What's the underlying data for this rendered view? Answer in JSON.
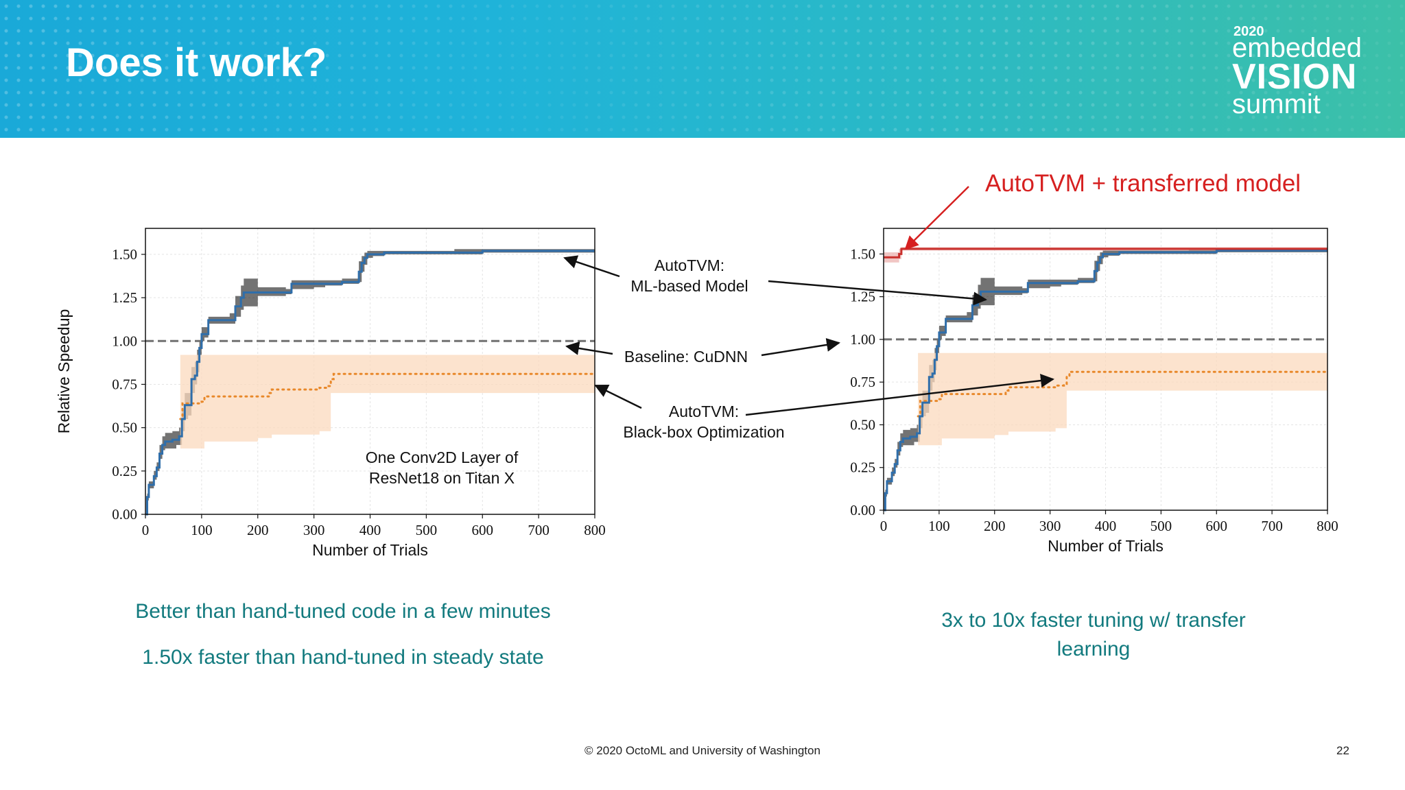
{
  "slide": {
    "title": "Does it work?",
    "logo": {
      "year": "2020",
      "line1": "embedded",
      "line2": "VISION",
      "line3": "summit"
    },
    "callouts": {
      "ml_model": [
        "AutoTVM:",
        "ML-based Model"
      ],
      "baseline": "Baseline: CuDNN",
      "blackbox": [
        "AutoTVM:",
        "Black-box Optimization"
      ],
      "transferred": "AutoTVM + transferred model"
    },
    "captions": {
      "left_1": "Better than hand-tuned code in a few minutes",
      "left_2": "1.50x faster than hand-tuned in steady state",
      "right_1": "3x to 10x faster tuning w/ transfer",
      "right_2": "learning"
    },
    "footer": "© 2020 OctoML and University of Washington",
    "page_number": "22"
  },
  "colors": {
    "ml_model": "#2f6eaa",
    "ml_band": "#8fa9c4",
    "blackbox": "#e8882a",
    "blackbox_band": "#fbd9bd",
    "baseline": "#707070",
    "transferred": "#c9302c",
    "transferred_band": "#ecb3b0",
    "arrow": "#111111",
    "red_arrow": "#d62020"
  },
  "chart_data": [
    {
      "type": "line",
      "xlabel": "Number of Trials",
      "ylabel": "Relative Speedup",
      "annotation": [
        "One Conv2D Layer of",
        "ResNet18 on Titan X"
      ],
      "xlim": [
        0,
        800
      ],
      "ylim": [
        0,
        1.65
      ],
      "xticks": [
        0,
        100,
        200,
        300,
        400,
        500,
        600,
        700,
        800
      ],
      "yticks": [
        0.0,
        0.25,
        0.5,
        0.75,
        1.0,
        1.25,
        1.5
      ],
      "ytick_labels": [
        "0.00",
        "0.25",
        "0.50",
        "0.75",
        "1.00",
        "1.25",
        "1.50"
      ],
      "grid": true,
      "series": [
        {
          "key": "ml_model",
          "style": "solid",
          "x": [
            0,
            3,
            6,
            15,
            20,
            25,
            30,
            35,
            40,
            48,
            55,
            60,
            65,
            70,
            76,
            82,
            88,
            92,
            96,
            100,
            105,
            112,
            120,
            150,
            160,
            170,
            175,
            200,
            250,
            260,
            300,
            320,
            350,
            380,
            385,
            390,
            395,
            405,
            425,
            450,
            550,
            600,
            800
          ],
          "y": [
            0,
            0.1,
            0.17,
            0.22,
            0.27,
            0.35,
            0.4,
            0.42,
            0.42,
            0.43,
            0.43,
            0.45,
            0.55,
            0.63,
            0.63,
            0.78,
            0.8,
            0.88,
            0.96,
            1.04,
            1.04,
            1.12,
            1.12,
            1.12,
            1.2,
            1.25,
            1.28,
            1.28,
            1.28,
            1.33,
            1.33,
            1.33,
            1.34,
            1.4,
            1.45,
            1.48,
            1.5,
            1.5,
            1.51,
            1.51,
            1.51,
            1.52,
            1.52
          ],
          "band_x": [
            0,
            3,
            6,
            15,
            20,
            25,
            30,
            35,
            40,
            48,
            55,
            60,
            65,
            70,
            76,
            82,
            88,
            92,
            96,
            100,
            105,
            112,
            120,
            150,
            160,
            170,
            175,
            200,
            250,
            260,
            300,
            320,
            350,
            380,
            385,
            390,
            395,
            405,
            425,
            450,
            550,
            600,
            800
          ],
          "band_low": [
            0,
            0.08,
            0.15,
            0.2,
            0.25,
            0.32,
            0.37,
            0.38,
            0.38,
            0.38,
            0.4,
            0.4,
            0.48,
            0.55,
            0.57,
            0.7,
            0.75,
            0.82,
            0.92,
            1.0,
            1.02,
            1.1,
            1.1,
            1.1,
            1.14,
            1.18,
            1.2,
            1.26,
            1.27,
            1.3,
            1.31,
            1.32,
            1.33,
            1.34,
            1.4,
            1.44,
            1.48,
            1.49,
            1.5,
            1.5,
            1.5,
            1.51,
            1.51
          ],
          "band_high": [
            0,
            0.12,
            0.19,
            0.25,
            0.3,
            0.4,
            0.45,
            0.47,
            0.47,
            0.48,
            0.48,
            0.5,
            0.6,
            0.7,
            0.7,
            0.85,
            0.88,
            0.95,
            1.0,
            1.08,
            1.08,
            1.14,
            1.14,
            1.16,
            1.26,
            1.32,
            1.36,
            1.31,
            1.3,
            1.35,
            1.35,
            1.35,
            1.36,
            1.46,
            1.49,
            1.51,
            1.52,
            1.52,
            1.52,
            1.52,
            1.53,
            1.53,
            1.53
          ]
        },
        {
          "key": "blackbox",
          "style": "dotted",
          "x": [
            62,
            66,
            80,
            100,
            105,
            110,
            200,
            220,
            225,
            250,
            275,
            310,
            325,
            330,
            335,
            800
          ],
          "y": [
            0.55,
            0.64,
            0.64,
            0.65,
            0.68,
            0.68,
            0.68,
            0.7,
            0.72,
            0.72,
            0.72,
            0.73,
            0.74,
            0.78,
            0.81,
            0.81
          ],
          "band_x": [
            62,
            66,
            80,
            100,
            105,
            110,
            200,
            220,
            225,
            250,
            275,
            310,
            325,
            330,
            335,
            800
          ],
          "band_low": [
            0.38,
            0.38,
            0.38,
            0.38,
            0.42,
            0.42,
            0.44,
            0.44,
            0.46,
            0.46,
            0.46,
            0.48,
            0.48,
            0.7,
            0.7,
            0.7
          ],
          "band_high": [
            0.92,
            0.92,
            0.92,
            0.92,
            0.92,
            0.92,
            0.92,
            0.92,
            0.92,
            0.92,
            0.92,
            0.92,
            0.92,
            0.92,
            0.92,
            0.92
          ]
        },
        {
          "key": "baseline",
          "style": "dashed",
          "x": [
            0,
            800
          ],
          "y": [
            1.0,
            1.0
          ]
        }
      ]
    },
    {
      "type": "line",
      "xlabel": "Number of Trials",
      "xlim": [
        0,
        800
      ],
      "ylim": [
        0,
        1.65
      ],
      "xticks": [
        0,
        100,
        200,
        300,
        400,
        500,
        600,
        700,
        800
      ],
      "yticks": [
        0.0,
        0.25,
        0.5,
        0.75,
        1.0,
        1.25,
        1.5
      ],
      "ytick_labels": [
        "0.00",
        "0.25",
        "0.50",
        "0.75",
        "1.00",
        "1.25",
        "1.50"
      ],
      "grid": true,
      "series": [
        {
          "key": "ml_model",
          "style": "solid",
          "x": [
            0,
            3,
            6,
            15,
            20,
            25,
            30,
            35,
            40,
            48,
            55,
            60,
            65,
            70,
            76,
            82,
            88,
            92,
            96,
            100,
            105,
            112,
            120,
            150,
            160,
            170,
            175,
            200,
            250,
            260,
            300,
            320,
            350,
            380,
            385,
            390,
            395,
            405,
            425,
            450,
            550,
            600,
            800
          ],
          "y": [
            0,
            0.1,
            0.17,
            0.22,
            0.27,
            0.35,
            0.4,
            0.42,
            0.42,
            0.43,
            0.43,
            0.45,
            0.55,
            0.63,
            0.63,
            0.78,
            0.8,
            0.88,
            0.96,
            1.04,
            1.04,
            1.12,
            1.12,
            1.12,
            1.2,
            1.25,
            1.28,
            1.28,
            1.28,
            1.33,
            1.33,
            1.33,
            1.34,
            1.4,
            1.45,
            1.48,
            1.5,
            1.5,
            1.51,
            1.51,
            1.51,
            1.52,
            1.52
          ],
          "band_x": [
            0,
            3,
            6,
            15,
            20,
            25,
            30,
            35,
            40,
            48,
            55,
            60,
            65,
            70,
            76,
            82,
            88,
            92,
            96,
            100,
            105,
            112,
            120,
            150,
            160,
            170,
            175,
            200,
            250,
            260,
            300,
            320,
            350,
            380,
            385,
            390,
            395,
            405,
            425,
            450,
            550,
            600,
            800
          ],
          "band_low": [
            0,
            0.08,
            0.15,
            0.2,
            0.25,
            0.32,
            0.37,
            0.38,
            0.38,
            0.38,
            0.4,
            0.4,
            0.48,
            0.55,
            0.57,
            0.7,
            0.75,
            0.82,
            0.92,
            1.0,
            1.02,
            1.1,
            1.1,
            1.1,
            1.14,
            1.18,
            1.2,
            1.26,
            1.27,
            1.3,
            1.31,
            1.32,
            1.33,
            1.34,
            1.4,
            1.44,
            1.48,
            1.49,
            1.5,
            1.5,
            1.5,
            1.51,
            1.51
          ],
          "band_high": [
            0,
            0.12,
            0.19,
            0.25,
            0.3,
            0.4,
            0.45,
            0.47,
            0.47,
            0.48,
            0.48,
            0.5,
            0.6,
            0.7,
            0.7,
            0.85,
            0.88,
            0.95,
            1.0,
            1.08,
            1.08,
            1.14,
            1.14,
            1.16,
            1.26,
            1.32,
            1.36,
            1.31,
            1.3,
            1.35,
            1.35,
            1.35,
            1.36,
            1.46,
            1.49,
            1.51,
            1.52,
            1.52,
            1.52,
            1.52,
            1.53,
            1.53,
            1.53
          ]
        },
        {
          "key": "blackbox",
          "style": "dotted",
          "x": [
            62,
            66,
            80,
            100,
            105,
            110,
            200,
            220,
            225,
            250,
            275,
            310,
            325,
            330,
            335,
            800
          ],
          "y": [
            0.55,
            0.64,
            0.64,
            0.65,
            0.68,
            0.68,
            0.68,
            0.7,
            0.72,
            0.72,
            0.72,
            0.73,
            0.74,
            0.78,
            0.81,
            0.81
          ],
          "band_x": [
            62,
            66,
            80,
            100,
            105,
            110,
            200,
            220,
            225,
            250,
            275,
            310,
            325,
            330,
            335,
            800
          ],
          "band_low": [
            0.38,
            0.38,
            0.38,
            0.38,
            0.42,
            0.42,
            0.44,
            0.44,
            0.46,
            0.46,
            0.46,
            0.48,
            0.48,
            0.7,
            0.7,
            0.7
          ],
          "band_high": [
            0.92,
            0.92,
            0.92,
            0.92,
            0.92,
            0.92,
            0.92,
            0.92,
            0.92,
            0.92,
            0.92,
            0.92,
            0.92,
            0.92,
            0.92,
            0.92
          ]
        },
        {
          "key": "baseline",
          "style": "dashed",
          "x": [
            0,
            800
          ],
          "y": [
            1.0,
            1.0
          ]
        },
        {
          "key": "transferred",
          "style": "solid",
          "x": [
            0,
            10,
            20,
            28,
            32,
            800
          ],
          "y": [
            1.48,
            1.48,
            1.48,
            1.5,
            1.53,
            1.53
          ],
          "band_x": [
            0,
            10,
            20,
            28,
            32,
            800
          ],
          "band_low": [
            1.45,
            1.45,
            1.45,
            1.47,
            1.52,
            1.52
          ],
          "band_high": [
            1.51,
            1.51,
            1.51,
            1.53,
            1.54,
            1.54
          ]
        }
      ]
    }
  ]
}
